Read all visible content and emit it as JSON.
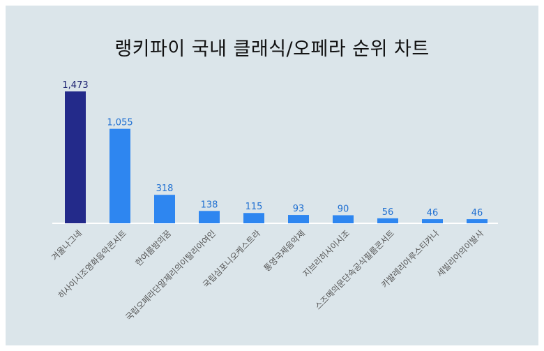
{
  "chart_data": {
    "type": "bar",
    "title": "랭키파이 국내 클래식/오페라 순위 차트",
    "categories": [
      "겨울나그네",
      "히사이시조영화음악콘서트",
      "한여름밤의꿈",
      "국립오페라단알제리의이탈리아여인",
      "국립심포니오케스트라",
      "통영국제음악제",
      "지브리히사이시조",
      "스즈메의문단속공식필름콘서트",
      "카발레리아루스티카나",
      "세빌리아의이발사"
    ],
    "values": [
      1473,
      1055,
      318,
      138,
      115,
      93,
      90,
      56,
      46,
      46
    ],
    "value_labels": [
      "1,473",
      "1,055",
      "318",
      "138",
      "115",
      "93",
      "90",
      "56",
      "46",
      "46"
    ],
    "ylim": [
      0,
      1473
    ],
    "grid": false,
    "legend": "none",
    "colors": {
      "highlight_bar": "#232a8a",
      "bar": "#2e86f0",
      "highlight_label": "#1a2070",
      "label": "#1f6fd1",
      "baseline": "#ffffff",
      "background": "#dbe5ea"
    }
  }
}
